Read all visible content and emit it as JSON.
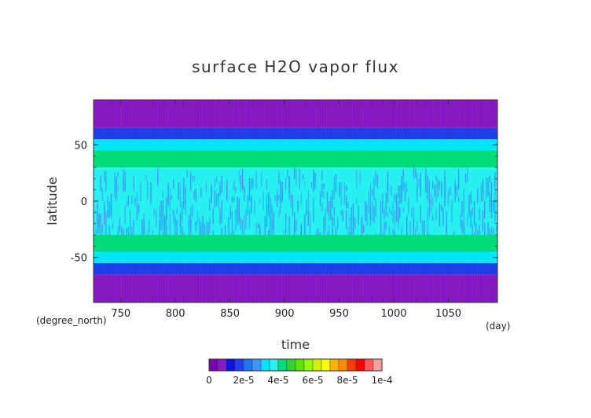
{
  "chart_data": {
    "type": "heatmap",
    "title": "surface H2O vapor flux",
    "xlabel": "time",
    "ylabel": "latitude",
    "x_unit": "(day)",
    "y_unit": "(degree_north)",
    "xlim": [
      725,
      1095
    ],
    "ylim": [
      -90,
      90
    ],
    "x_ticks": [
      750,
      800,
      850,
      900,
      950,
      1000,
      1050
    ],
    "y_ticks": [
      -50,
      0,
      50
    ],
    "grid": false,
    "bands": [
      {
        "lat_min": -90,
        "lat_max": -65,
        "value": 5e-06
      },
      {
        "lat_min": -65,
        "lat_max": -55,
        "value": 1.5e-05
      },
      {
        "lat_min": -55,
        "lat_max": -45,
        "value": 3e-05
      },
      {
        "lat_min": -45,
        "lat_max": -30,
        "value": 4e-05
      },
      {
        "lat_min": -30,
        "lat_max": 30,
        "value": 3.6e-05
      },
      {
        "lat_min": 30,
        "lat_max": 45,
        "value": 4e-05
      },
      {
        "lat_min": 45,
        "lat_max": 55,
        "value": 3e-05
      },
      {
        "lat_min": 55,
        "lat_max": 65,
        "value": 1.5e-05
      },
      {
        "lat_min": 65,
        "lat_max": 90,
        "value": 5e-06
      }
    ],
    "colorbar": {
      "levels": [
        0,
        5e-06,
        1e-05,
        1.5e-05,
        2e-05,
        2.5e-05,
        3e-05,
        3.5e-05,
        4e-05,
        4.5e-05,
        5e-05,
        5.5e-05,
        6e-05,
        6.5e-05,
        7e-05,
        7.5e-05,
        8e-05,
        8.5e-05,
        9e-05,
        9.5e-05,
        0.0001
      ],
      "colors": [
        "#7a00b4",
        "#8a19c8",
        "#1010e0",
        "#2040f0",
        "#1e78f5",
        "#3c96ff",
        "#00e4ff",
        "#28f0f0",
        "#00dc78",
        "#32d232",
        "#5ae600",
        "#96ff00",
        "#d2f000",
        "#ffff00",
        "#ffb400",
        "#ff8c00",
        "#ff3c00",
        "#ff0000",
        "#ff5a5a",
        "#ffa0a0"
      ],
      "tick_labels": [
        "0",
        "2e-5",
        "4e-5",
        "6e-5",
        "8e-5",
        "1e-4"
      ]
    }
  },
  "band_colors": {
    "polar": "#8a1ec8",
    "subpolar": "#1414e6",
    "midlat": "#2896ff",
    "cyan": "#00f0ff",
    "tropics_streak": "#3c8cf0"
  }
}
